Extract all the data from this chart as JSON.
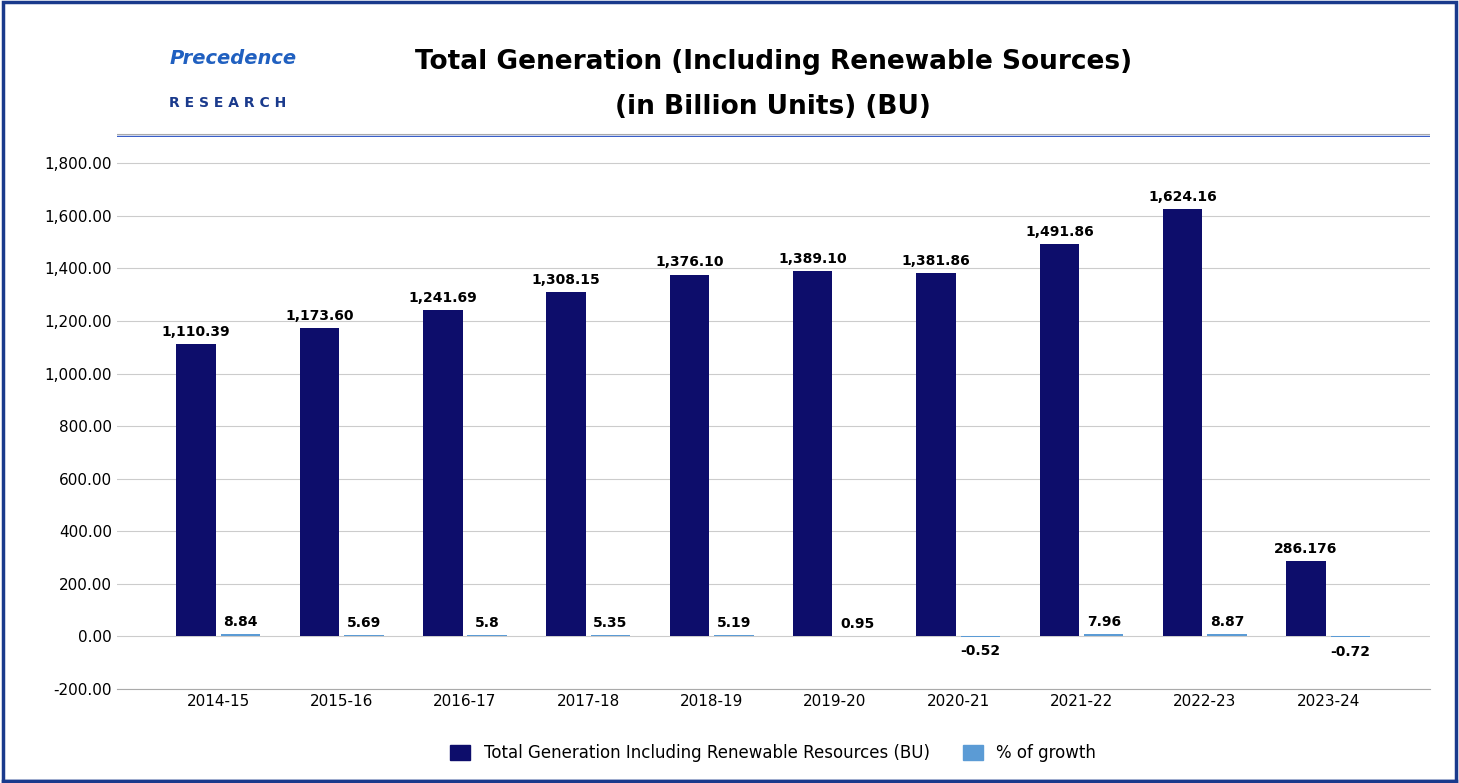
{
  "title_line1": "Total Generation (Including Renewable Sources)",
  "title_line2": "(in Billion Units) (BU)",
  "categories": [
    "2014-15",
    "2015-16",
    "2016-17",
    "2017-18",
    "2018-19",
    "2019-20",
    "2020-21",
    "2021-22",
    "2022-23",
    "2023-24"
  ],
  "generation": [
    1110.39,
    1173.6,
    1241.69,
    1308.15,
    1376.1,
    1389.1,
    1381.86,
    1491.86,
    1624.16,
    286.176
  ],
  "generation_labels": [
    "1,110.39",
    "1,173.60",
    "1,241.69",
    "1,308.15",
    "1,376.10",
    "1,389.10",
    "1,381.86",
    "1,491.86",
    "1,624.16",
    "286.176"
  ],
  "growth": [
    8.84,
    5.69,
    5.8,
    5.35,
    5.19,
    0.95,
    -0.52,
    7.96,
    8.87,
    -0.72
  ],
  "growth_labels": [
    "8.84",
    "5.69",
    "5.8",
    "5.35",
    "5.19",
    "0.95",
    "-0.52",
    "7.96",
    "8.87",
    "-0.72"
  ],
  "bar_color_gen": "#0d0d6b",
  "bar_color_growth": "#5b9bd5",
  "bg_color": "#ffffff",
  "header_bg": "#ffffff",
  "title_fontsize": 19,
  "tick_fontsize": 11,
  "legend_fontsize": 12,
  "annotation_fontsize": 10,
  "ylim": [
    -200,
    1900
  ],
  "yticks": [
    -200,
    0,
    200,
    400,
    600,
    800,
    1000,
    1200,
    1400,
    1600,
    1800
  ],
  "bar_width": 0.32,
  "outer_border_color": "#1a3a8c",
  "header_separator_color": "#3a5fc8",
  "logo_text_precedence": "Precedence",
  "logo_text_research": "R E S E A R C H",
  "logo_color_main": "#1a3a8c",
  "logo_color_accent": "#2060c0"
}
